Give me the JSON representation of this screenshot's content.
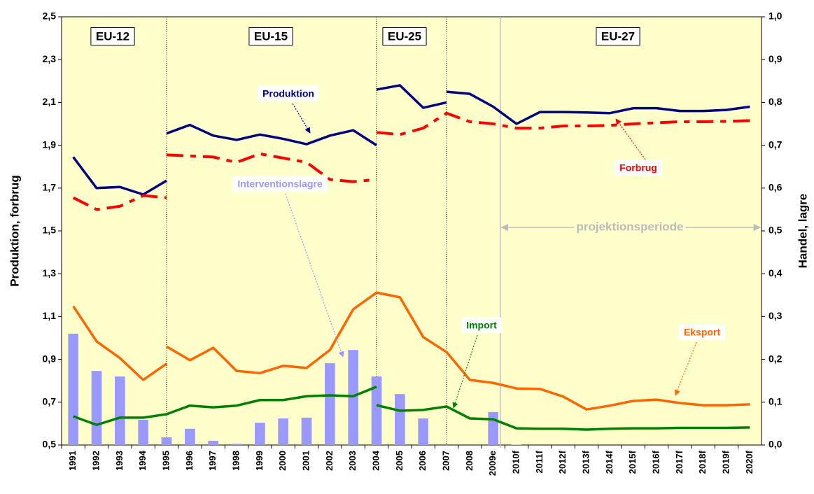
{
  "chart_data": {
    "type": "line",
    "y_label": "Produktion, forbrug",
    "y2_label": "Handel, lagre",
    "periods": [
      "EU-12",
      "EU-15",
      "EU-25",
      "EU-27"
    ],
    "projection_label": "projektionsperiode",
    "categories": [
      "1991",
      "1992",
      "1993",
      "1994",
      "1995",
      "1996",
      "1997",
      "1998",
      "1999",
      "2000",
      "2001",
      "2002",
      "2003",
      "2004",
      "2005",
      "2006",
      "2007",
      "2008",
      "2009e",
      "2010f",
      "2011f",
      "2012f",
      "2013f",
      "2014f",
      "2015f",
      "2016f",
      "2017f",
      "2018f",
      "2019f",
      "2020f"
    ],
    "ylim": [
      0.5,
      2.5
    ],
    "yticks": [
      {
        "value": 0.5,
        "label": "0,5"
      },
      {
        "value": 0.7,
        "label": "0,7"
      },
      {
        "value": 0.9,
        "label": "0,9"
      },
      {
        "value": 1.1,
        "label": "1,1"
      },
      {
        "value": 1.3,
        "label": "1,3"
      },
      {
        "value": 1.5,
        "label": "1,5"
      },
      {
        "value": 1.7,
        "label": "1,7"
      },
      {
        "value": 1.9,
        "label": "1,9"
      },
      {
        "value": 2.1,
        "label": "2,1"
      },
      {
        "value": 2.3,
        "label": "2,3"
      },
      {
        "value": 2.5,
        "label": "2,5"
      }
    ],
    "y2lim": [
      0,
      1
    ],
    "y2ticks": [
      {
        "value": 0,
        "label": "0,0"
      },
      {
        "value": 0.1,
        "label": "0,1"
      },
      {
        "value": 0.2,
        "label": "0,2"
      },
      {
        "value": 0.3,
        "label": "0,3"
      },
      {
        "value": 0.4,
        "label": "0,4"
      },
      {
        "value": 0.5,
        "label": "0,5"
      },
      {
        "value": 0.6,
        "label": "0,6"
      },
      {
        "value": 0.7,
        "label": "0,7"
      },
      {
        "value": 0.8,
        "label": "0,8"
      },
      {
        "value": 0.9,
        "label": "0,9"
      },
      {
        "value": 1,
        "label": "1,0"
      }
    ],
    "series": [
      {
        "name": "Interventionslagre",
        "type": "bar",
        "color": "#9999ff",
        "axis": "y2",
        "values": [
          0.26,
          0.173,
          0.16,
          0.059,
          0.018,
          0.038,
          0.01,
          0.003,
          0.052,
          0.062,
          0.064,
          0.191,
          0.222,
          0.16,
          0.119,
          0.062,
          0,
          0,
          0.077,
          0.001,
          0,
          0,
          0,
          0,
          0,
          0,
          0,
          0,
          0,
          0
        ]
      },
      {
        "name": "Produktion",
        "type": "line",
        "color": "#000080",
        "axis": "y",
        "dashed": false,
        "segments": [
          [
            1.845,
            1.7,
            1.705,
            1.67,
            1.735,
            null,
            null,
            null,
            null,
            null,
            null,
            null,
            null,
            null,
            null,
            null,
            null,
            null,
            null,
            null,
            null,
            null,
            null,
            null,
            null,
            null,
            null,
            null,
            null,
            null
          ],
          [
            null,
            null,
            null,
            null,
            1.955,
            1.995,
            1.945,
            1.925,
            1.95,
            1.93,
            1.905,
            1.945,
            1.97,
            1.9,
            null,
            null,
            null,
            null,
            null,
            null,
            null,
            null,
            null,
            null,
            null,
            null,
            null,
            null,
            null,
            null
          ],
          [
            null,
            null,
            null,
            null,
            null,
            null,
            null,
            null,
            null,
            null,
            null,
            null,
            null,
            2.16,
            2.18,
            2.075,
            2.1,
            null,
            null,
            null,
            null,
            null,
            null,
            null,
            null,
            null,
            null,
            null,
            null,
            null
          ],
          [
            null,
            null,
            null,
            null,
            null,
            null,
            null,
            null,
            null,
            null,
            null,
            null,
            null,
            null,
            null,
            null,
            2.15,
            2.14,
            2.08,
            2.0,
            2.055,
            2.055,
            2.053,
            2.05,
            2.073,
            2.073,
            2.06,
            2.06,
            2.065,
            2.08
          ]
        ]
      },
      {
        "name": "Forbrug",
        "type": "line",
        "color": "#ff0000",
        "axis": "y",
        "dashed": true,
        "segments": [
          [
            1.655,
            1.6,
            1.615,
            1.665,
            1.655,
            null,
            null,
            null,
            null,
            null,
            null,
            null,
            null,
            null,
            null,
            null,
            null,
            null,
            null,
            null,
            null,
            null,
            null,
            null,
            null,
            null,
            null,
            null,
            null,
            null
          ],
          [
            null,
            null,
            null,
            null,
            1.855,
            1.85,
            1.845,
            1.82,
            1.86,
            1.84,
            1.82,
            1.74,
            1.73,
            1.74,
            null,
            null,
            null,
            null,
            null,
            null,
            null,
            null,
            null,
            null,
            null,
            null,
            null,
            null,
            null,
            null
          ],
          [
            null,
            null,
            null,
            null,
            null,
            null,
            null,
            null,
            null,
            null,
            null,
            null,
            null,
            1.96,
            1.95,
            1.98,
            2.05,
            2.01,
            2.0,
            1.98,
            1.98,
            1.99,
            1.99,
            1.993,
            2.0,
            2.005,
            2.01,
            2.01,
            2.012,
            2.015
          ]
        ]
      },
      {
        "name": "Eksport",
        "type": "line",
        "color": "#ff6600",
        "axis": "y2",
        "dashed": false,
        "segments": [
          [
            0.324,
            0.242,
            0.203,
            0.152,
            0.19,
            null,
            null,
            null,
            null,
            null,
            null,
            null,
            null,
            null,
            null,
            null,
            null,
            null,
            null,
            null,
            null,
            null,
            null,
            null,
            null,
            null,
            null,
            null,
            null,
            null
          ],
          [
            null,
            null,
            null,
            null,
            0.23,
            0.198,
            0.227,
            0.173,
            0.168,
            0.185,
            0.18,
            0.222,
            0.317,
            0.356,
            0.345,
            0.252,
            0.217,
            0.152,
            0.145,
            0.132,
            0.131,
            0.113,
            0.083,
            0.092,
            0.103,
            0.106,
            0.098,
            0.093,
            0.093,
            0.095
          ]
        ]
      },
      {
        "name": "Import",
        "type": "line",
        "color": "#008000",
        "axis": "y2",
        "dashed": false,
        "segments": [
          [
            0.067,
            0.047,
            0.064,
            0.064,
            0.072,
            0.092,
            0.088,
            0.092,
            0.105,
            0.105,
            0.114,
            0.116,
            0.114,
            0.136,
            null,
            null,
            null,
            null,
            null,
            null,
            null,
            null,
            null,
            null,
            null,
            null,
            null,
            null,
            null,
            null
          ],
          [
            null,
            null,
            null,
            null,
            null,
            null,
            null,
            null,
            null,
            null,
            null,
            null,
            null,
            0.093,
            0.08,
            0.082,
            0.09,
            0.062,
            0.06,
            0.039,
            0.038,
            0.038,
            0.036,
            0.038,
            0.039,
            0.039,
            0.04,
            0.04,
            0.04,
            0.041
          ]
        ]
      }
    ]
  }
}
